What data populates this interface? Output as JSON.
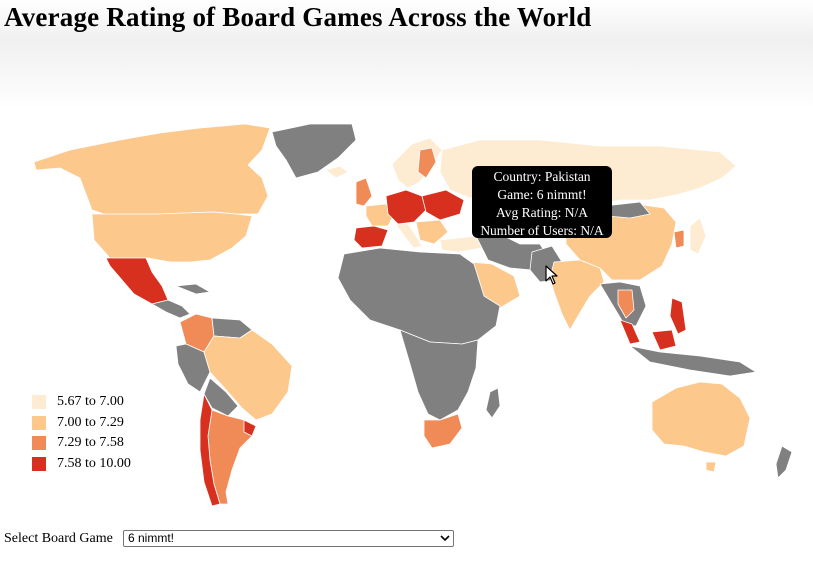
{
  "title": "Average Rating of Board Games Across the World",
  "colors": {
    "no_data": "#808080",
    "ocean": "#ffffff",
    "bins": [
      "#fdebd2",
      "#fcc88c",
      "#f08a57",
      "#d7301f"
    ]
  },
  "legend": {
    "items": [
      {
        "label": "5.67 to 7.00",
        "color": "#fdebd2"
      },
      {
        "label": "7.00 to 7.29",
        "color": "#fcc88c"
      },
      {
        "label": "7.29 to 7.58",
        "color": "#f08a57"
      },
      {
        "label": "7.58 to 10.00",
        "color": "#d7301f"
      }
    ]
  },
  "tooltip": {
    "country": "Country: Pakistan",
    "game": "Game: 6 nimmt!",
    "avg_rating": "Avg Rating: N/A",
    "num_users": "Number of Users: N/A"
  },
  "selector": {
    "label": "Select Board Game",
    "selected": "6 nimmt!"
  },
  "cursor_icon": "arrow-cursor-icon"
}
